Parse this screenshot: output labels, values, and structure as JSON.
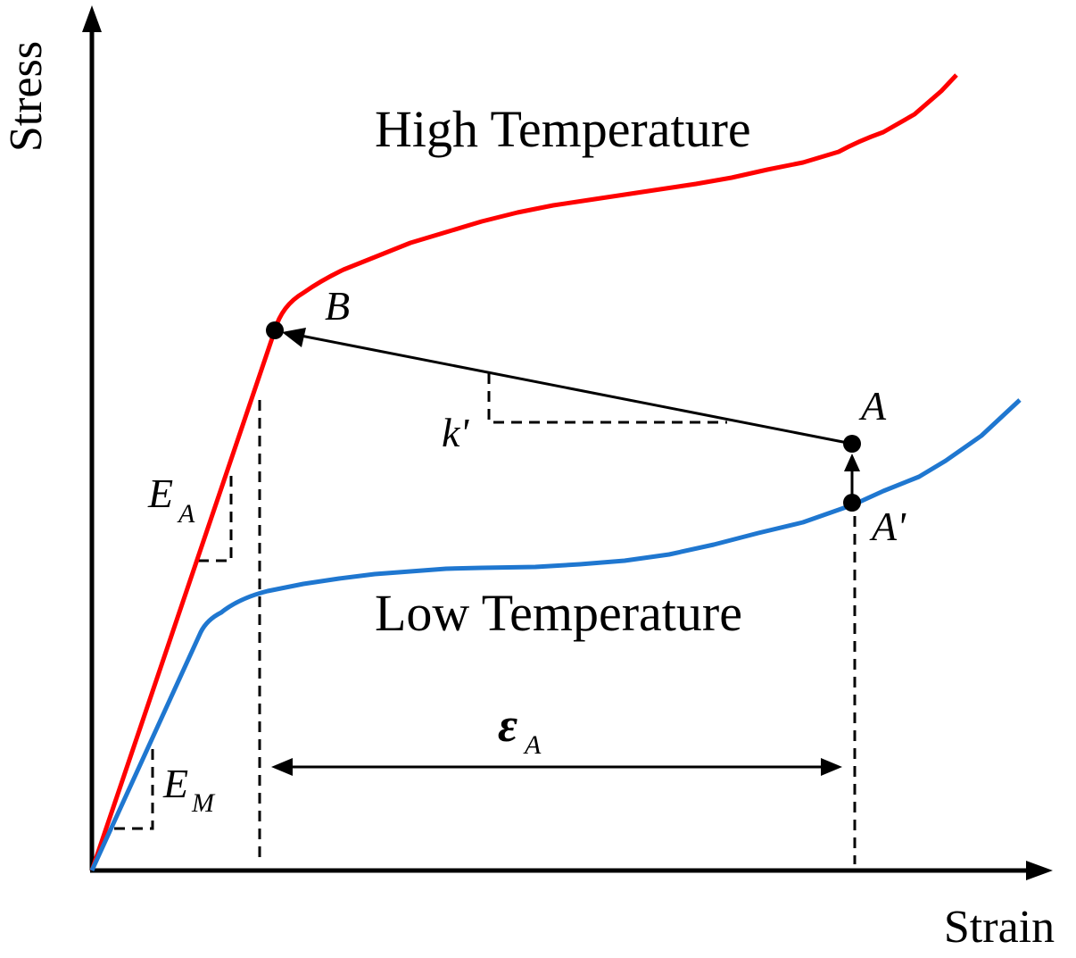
{
  "axes": {
    "x_label": "Strain",
    "y_label": "Stress"
  },
  "curves": {
    "high": {
      "label": "High Temperature",
      "color": "#ff0000"
    },
    "low": {
      "label": "Low Temperature",
      "color": "#1f77d0"
    }
  },
  "points": {
    "A": "A",
    "A_prime": "A'",
    "B": "B"
  },
  "annotations": {
    "slope_k": "k'",
    "E_A": {
      "main": "E",
      "sub": "A"
    },
    "E_M": {
      "main": "E",
      "sub": "M"
    },
    "epsilon_A": {
      "main": "ε",
      "sub": "A"
    }
  },
  "colors": {
    "axis": "#000000",
    "high_curve": "#ff0000",
    "low_curve": "#1f77d0",
    "marker": "#000000"
  }
}
